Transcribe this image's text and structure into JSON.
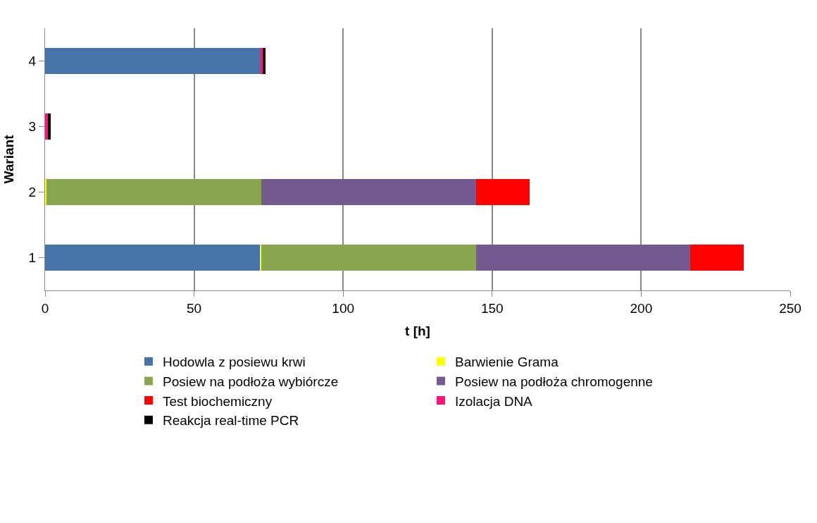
{
  "chart_data": {
    "type": "bar",
    "orientation": "horizontal",
    "stacked": true,
    "xlabel": "t [h]",
    "ylabel": "Wariant",
    "categories": [
      "4",
      "3",
      "2",
      "1"
    ],
    "series": [
      {
        "name": "Hodowla z posiewu krwi",
        "color": "#4674a8",
        "values": [
          72,
          null,
          null,
          72
        ]
      },
      {
        "name": "Barwienie Grama",
        "color": "#ffff00",
        "values": [
          null,
          null,
          0.5,
          0.5
        ]
      },
      {
        "name": "Posiew na podłoża wybiórcze",
        "color": "#8aa54f",
        "values": [
          null,
          null,
          72,
          72
        ]
      },
      {
        "name": "Posiew na podłoża chromogenne",
        "color": "#725a8f",
        "values": [
          null,
          null,
          72,
          72
        ]
      },
      {
        "name": "Test biochemiczny",
        "color": "#ff0000",
        "values": [
          null,
          null,
          18,
          18
        ]
      },
      {
        "name": "Izolacja DNA",
        "color": "#ff1478",
        "values": [
          1,
          1,
          null,
          null
        ]
      },
      {
        "name": "Reakcja real-time PCR",
        "color": "#000000",
        "values": [
          1,
          1,
          null,
          null
        ]
      }
    ],
    "xlim": [
      0,
      250
    ],
    "xticks": [
      0,
      50,
      100,
      150,
      200,
      250
    ],
    "grid": "x",
    "legend": "bottom"
  }
}
